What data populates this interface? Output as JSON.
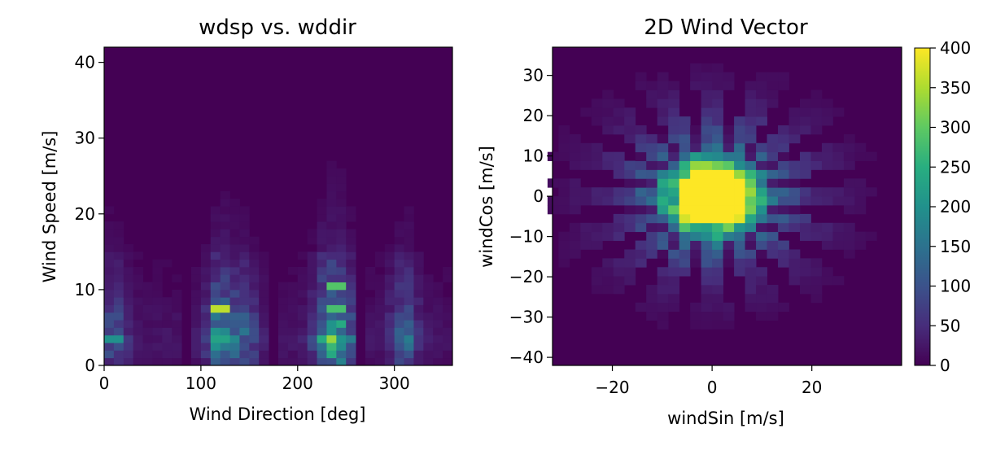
{
  "chart_data": [
    {
      "type": "heatmap",
      "title": "wdsp vs. wddir",
      "xlabel": "Wind Direction [deg]",
      "ylabel": "Wind Speed [m/s]",
      "xlim": [
        0,
        360
      ],
      "ylim": [
        0,
        42
      ],
      "xticks": [
        "0",
        "100",
        "200",
        "300"
      ],
      "yticks": [
        "0",
        "10",
        "20",
        "30",
        "40"
      ],
      "colormap": "viridis",
      "vmax": 400,
      "bins": {
        "x": 36,
        "y": 42
      },
      "gaps_deg": [
        [
          80,
          90
        ],
        [
          170,
          180
        ],
        [
          260,
          270
        ]
      ],
      "direction_peaks": [
        {
          "dir": 10,
          "weight": 0.5
        },
        {
          "dir": 120,
          "weight": 0.9
        },
        {
          "dir": 145,
          "weight": 0.55
        },
        {
          "dir": 230,
          "weight": 0.85
        },
        {
          "dir": 245,
          "weight": 0.8
        },
        {
          "dir": 310,
          "weight": 0.6
        }
      ],
      "hot_spots": [
        {
          "dir": 120,
          "speed": 7.5,
          "value": 360
        },
        {
          "dir": 240,
          "speed": 10.5,
          "value": 290
        },
        {
          "dir": 240,
          "speed": 7.5,
          "value": 280
        },
        {
          "dir": 120,
          "speed": 3.5,
          "value": 230
        },
        {
          "dir": 10,
          "speed": 3.5,
          "value": 200
        }
      ]
    },
    {
      "type": "heatmap",
      "title": "2D Wind Vector",
      "xlabel": "windSin [m/s]",
      "ylabel": "windCos [m/s]",
      "xlim": [
        -32,
        38
      ],
      "ylim": [
        -42,
        37
      ],
      "xticks": [
        "−20",
        "0",
        "20"
      ],
      "yticks": [
        "30",
        "20",
        "10",
        "0",
        "−10",
        "−20",
        "−30",
        "−40"
      ],
      "colormap": "viridis",
      "vmax": 400,
      "bins": {
        "x": 36,
        "y": 40
      },
      "center": [
        0,
        0
      ],
      "rays": 16,
      "colorbar_ticks": [
        "0",
        "50",
        "100",
        "150",
        "200",
        "250",
        "300",
        "350",
        "400"
      ]
    }
  ]
}
